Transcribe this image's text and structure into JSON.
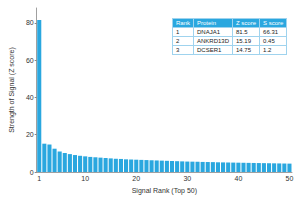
{
  "chart_data": {
    "type": "bar",
    "x_label": "Signal Rank (Top 50)",
    "y_label": "Strength of Signal (Z score)",
    "categories": [
      "1",
      null,
      null,
      null,
      null,
      null,
      null,
      null,
      null,
      "10",
      null,
      null,
      null,
      null,
      null,
      null,
      null,
      null,
      null,
      "20",
      null,
      null,
      null,
      null,
      null,
      null,
      null,
      null,
      null,
      "30",
      null,
      null,
      null,
      null,
      null,
      null,
      null,
      null,
      null,
      "40",
      null,
      null,
      null,
      null,
      null,
      null,
      null,
      null,
      null,
      "50"
    ],
    "values": [
      81.5,
      15.19,
      14.75,
      12.5,
      11,
      10.2,
      9.6,
      9.1,
      8.7,
      8.4,
      8.1,
      7.9,
      7.7,
      7.5,
      7.3,
      7.1,
      7.0,
      6.8,
      6.7,
      6.6,
      6.5,
      6.4,
      6.3,
      6.2,
      6.1,
      6.0,
      5.9,
      5.8,
      5.7,
      5.6,
      5.55,
      5.5,
      5.4,
      5.35,
      5.3,
      5.2,
      5.15,
      5.1,
      5.05,
      5.0,
      4.95,
      4.9,
      4.85,
      4.8,
      4.75,
      4.7,
      4.65,
      4.6,
      4.55,
      4.5
    ],
    "color": "#2aa7df",
    "ylim": [
      0,
      88
    ],
    "yticks": [
      0,
      20,
      40,
      60,
      80
    ],
    "grid": false,
    "table": {
      "columns": [
        "Rank",
        "Protein",
        "Z score",
        "S score"
      ],
      "rows": [
        [
          "1",
          "DNAJA1",
          "81.5",
          "66.31"
        ],
        [
          "2",
          "ANKRD13D",
          "15.19",
          "0.45"
        ],
        [
          "3",
          "DCSER1",
          "14.75",
          "1.2"
        ]
      ]
    }
  }
}
